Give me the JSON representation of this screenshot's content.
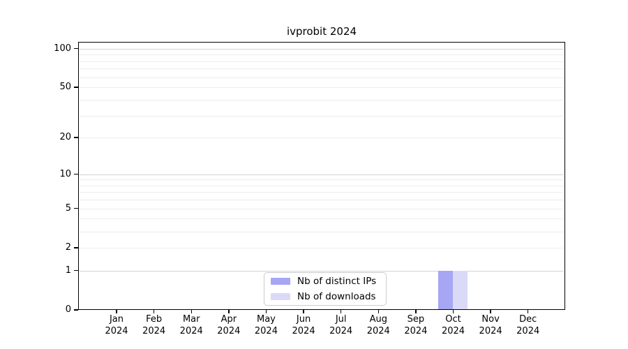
{
  "chart_data": {
    "type": "bar",
    "title": "ivprobit 2024",
    "categories": [
      "Jan 2024",
      "Feb 2024",
      "Mar 2024",
      "Apr 2024",
      "May 2024",
      "Jun 2024",
      "Jul 2024",
      "Aug 2024",
      "Sep 2024",
      "Oct 2024",
      "Nov 2024",
      "Dec 2024"
    ],
    "series": [
      {
        "name": "Nb of distinct IPs",
        "color": "#a6a6f4",
        "values": [
          0,
          0,
          0,
          0,
          0,
          0,
          0,
          0,
          0,
          1,
          0,
          0
        ]
      },
      {
        "name": "Nb of downloads",
        "color": "#dadaf8",
        "values": [
          0,
          0,
          0,
          0,
          0,
          0,
          0,
          0,
          0,
          1,
          0,
          0
        ]
      }
    ],
    "yscale": "log1p",
    "ylim": [
      0,
      113
    ],
    "yticks": [
      0,
      1,
      2,
      5,
      10,
      20,
      50,
      100
    ],
    "gridlines_major": [
      1,
      10,
      100
    ],
    "gridlines_minor": [
      2,
      3,
      4,
      5,
      6,
      7,
      8,
      9,
      20,
      30,
      40,
      50,
      60,
      70,
      80,
      90
    ],
    "grid": true,
    "legend_position": "lower center",
    "colors": {
      "axis": "#000000",
      "grid_major": "#d2d2d2",
      "grid_minor": "#ededed",
      "legend_border": "#cccccc"
    }
  }
}
